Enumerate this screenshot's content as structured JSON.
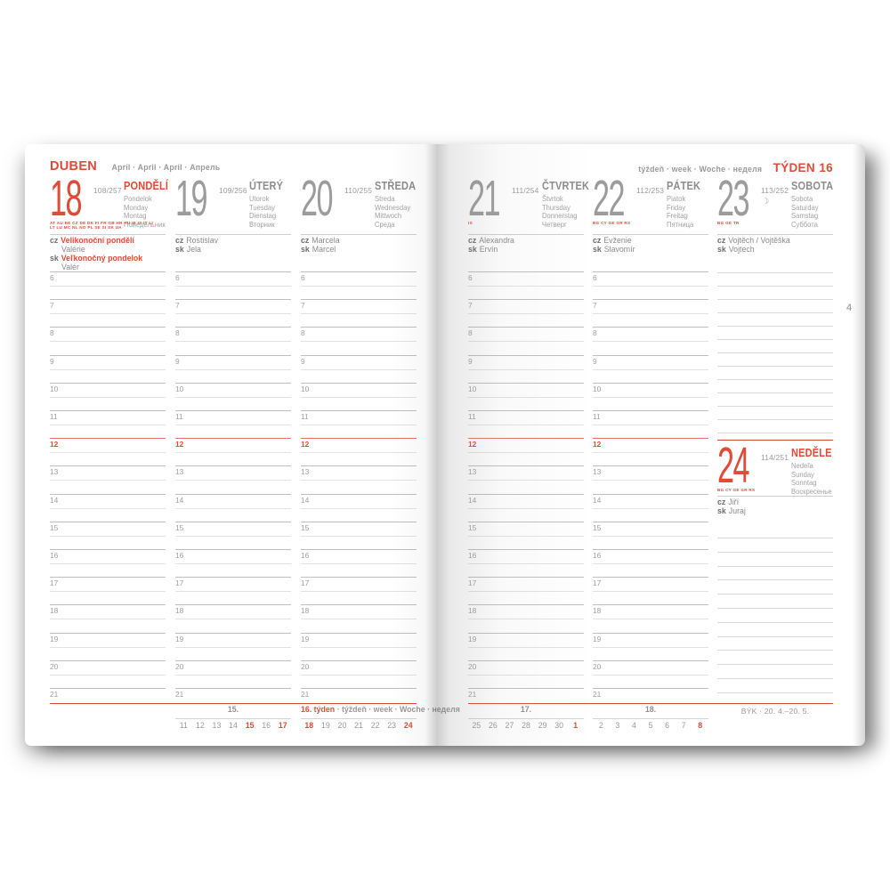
{
  "colors": {
    "accent": "#df4b38"
  },
  "page_number": "4",
  "header_left": {
    "month": "DUBEN",
    "langs": "Apríl · April · April · Апрель"
  },
  "header_right": {
    "words": "týždeň · week · Woche · неделя",
    "week": "TÝDEN",
    "number": "16"
  },
  "hour_labels": [
    "6",
    "7",
    "8",
    "9",
    "10",
    "11",
    "12",
    "13",
    "14",
    "15",
    "16",
    "17",
    "18",
    "19",
    "20",
    "21"
  ],
  "noon_label": "12",
  "days": [
    {
      "num": "18",
      "red": true,
      "doy": "108/257",
      "title": "PONDĚLÍ",
      "title_red": true,
      "langs": [
        "Pondelok",
        "Monday",
        "Montag",
        "Понедельник"
      ],
      "codes": [
        "AT AU BE CZ DE DK FI FR GB HR HU IE IS IT LI",
        "LT LU MC NL NO PL SE SI SK UA"
      ],
      "names": [
        {
          "prefix": "cz",
          "text": "Velikonoční pondělí",
          "red": true
        },
        {
          "text": "Valérie",
          "indent": true
        },
        {
          "prefix": "sk",
          "text": "Veľkonočný pondelok",
          "red": true
        },
        {
          "text": "Valér",
          "indent": true
        }
      ]
    },
    {
      "num": "19",
      "doy": "109/256",
      "title": "ÚTERÝ",
      "langs": [
        "Utorok",
        "Tuesday",
        "Dienstag",
        "Вторник"
      ],
      "names": [
        {
          "prefix": "cz",
          "text": "Rostislav"
        },
        {
          "prefix": "sk",
          "text": "Jela"
        }
      ]
    },
    {
      "num": "20",
      "doy": "110/255",
      "title": "STŘEDA",
      "langs": [
        "Streda",
        "Wednesday",
        "Mittwoch",
        "Среда"
      ],
      "names": [
        {
          "prefix": "cz",
          "text": "Marcela"
        },
        {
          "prefix": "sk",
          "text": "Marcel"
        }
      ]
    },
    {
      "num": "21",
      "doy": "111/254",
      "title": "ČTVRTEK",
      "langs": [
        "Štvrtok",
        "Thursday",
        "Donnerstag",
        "Четверг"
      ],
      "codes": [
        "IS"
      ],
      "names": [
        {
          "prefix": "cz",
          "text": "Alexandra"
        },
        {
          "prefix": "sk",
          "text": "Ervín"
        }
      ]
    },
    {
      "num": "22",
      "doy": "112/253",
      "title": "PÁTEK",
      "langs": [
        "Piatok",
        "Friday",
        "Freitag",
        "Пятница"
      ],
      "codes": [
        "BG CY GE GR RS"
      ],
      "names": [
        {
          "prefix": "cz",
          "text": "Evženie"
        },
        {
          "prefix": "sk",
          "text": "Slavomír"
        }
      ]
    },
    {
      "num": "23",
      "doy": "113/252",
      "moon": "☾",
      "title": "SOBOTA",
      "langs": [
        "Sobota",
        "Saturday",
        "Samstag",
        "Суббота"
      ],
      "codes": [
        "BG GE TR"
      ],
      "names": [
        {
          "prefix": "cz",
          "text": "Vojtěch / Vojtěška"
        },
        {
          "prefix": "sk",
          "text": "Vojtech"
        }
      ]
    },
    {
      "num": "24",
      "red": true,
      "doy": "114/251",
      "title": "NEDĚLE",
      "title_red": true,
      "langs": [
        "Nedeľa",
        "Sunday",
        "Sonntag",
        "Воскресенье"
      ],
      "codes": [
        "BG CY GE GR RS"
      ],
      "names": [
        {
          "prefix": "cz",
          "text": "Jiří"
        },
        {
          "prefix": "sk",
          "text": "Juraj"
        }
      ]
    }
  ],
  "footer": {
    "left": [
      {
        "label": "15.",
        "numbers": [
          "11",
          "12",
          "13",
          "14",
          "15",
          "16",
          "17"
        ],
        "red_numbers": [
          "15",
          "17"
        ]
      },
      {
        "label_red": "16. týden",
        "label_gray": " · týždeň · week · Woche · неделя",
        "numbers": [
          "18",
          "19",
          "20",
          "21",
          "22",
          "23",
          "24"
        ],
        "red_numbers": [
          "18",
          "24"
        ]
      }
    ],
    "right": [
      {
        "label": "17.",
        "numbers": [
          "25",
          "26",
          "27",
          "28",
          "29",
          "30",
          "1"
        ],
        "red_numbers": [
          "1"
        ]
      },
      {
        "label": "18.",
        "numbers": [
          "2",
          "3",
          "4",
          "5",
          "6",
          "7",
          "8"
        ],
        "red_numbers": [
          "8"
        ]
      }
    ],
    "zodiac": "BÝK · 20. 4.–20. 5."
  }
}
